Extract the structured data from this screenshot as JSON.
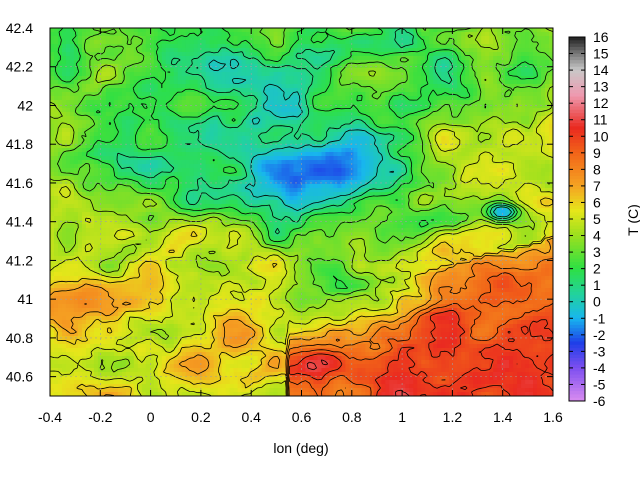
{
  "chart_data": {
    "type": "heatmap",
    "title": "",
    "xlabel": "lon (deg)",
    "ylabel": "",
    "colorbar_label": "T (C)",
    "xlim": [
      -0.4,
      1.6
    ],
    "ylim": [
      40.5,
      42.4
    ],
    "color_range": [
      -6,
      16
    ],
    "x_ticks": [
      -0.4,
      -0.2,
      0,
      0.2,
      0.4,
      0.6,
      0.8,
      1,
      1.2,
      1.4,
      1.6
    ],
    "y_ticks": [
      40.6,
      40.8,
      41,
      41.2,
      41.4,
      41.6,
      41.8,
      42,
      42.2,
      42.4
    ],
    "colorbar_ticks": [
      -6,
      -5,
      -4,
      -3,
      -2,
      -1,
      0,
      1,
      2,
      3,
      4,
      5,
      6,
      7,
      8,
      9,
      10,
      11,
      12,
      13,
      14,
      15,
      16
    ],
    "x_tick_labels": [
      "-0.4",
      "-0.2",
      "0",
      "0.2",
      "0.4",
      "0.6",
      "0.8",
      "1",
      "1.2",
      "1.4",
      "1.6"
    ],
    "y_tick_labels": [
      "40.6",
      "40.8",
      "41",
      "41.2",
      "41.4",
      "41.6",
      "41.8",
      "42",
      "42.2",
      "42.4"
    ],
    "colorbar_tick_labels": [
      "-6",
      "-5",
      "-4",
      "-3",
      "-2",
      "-1",
      "0",
      "1",
      "2",
      "3",
      "4",
      "5",
      "6",
      "7",
      "8",
      "9",
      "10",
      "11",
      "12",
      "13",
      "14",
      "15",
      "16"
    ],
    "grid": true,
    "contours": true,
    "colormap": [
      {
        "v": -6,
        "c": "#d98cf0"
      },
      {
        "v": -4,
        "c": "#7d4ff0"
      },
      {
        "v": -2.5,
        "c": "#1f3fe8"
      },
      {
        "v": -1,
        "c": "#18b6ee"
      },
      {
        "v": 0.5,
        "c": "#22d39a"
      },
      {
        "v": 2,
        "c": "#2ee044"
      },
      {
        "v": 4,
        "c": "#9be01e"
      },
      {
        "v": 5.5,
        "c": "#e6e61a"
      },
      {
        "v": 7,
        "c": "#f5a323"
      },
      {
        "v": 9,
        "c": "#f26418"
      },
      {
        "v": 10.5,
        "c": "#ea2a20"
      },
      {
        "v": 12.5,
        "c": "#ee9ab0"
      },
      {
        "v": 14,
        "c": "#c8c8c8"
      },
      {
        "v": 15,
        "c": "#787878"
      },
      {
        "v": 16,
        "c": "#1e1e1e"
      }
    ],
    "field_features": [
      {
        "lon": 0.65,
        "lat": 41.6,
        "rlon": 0.35,
        "rlat": 0.25,
        "dT": -6
      },
      {
        "lon": 0.55,
        "lat": 41.95,
        "rlon": 0.4,
        "rlat": 0.3,
        "dT": -3
      },
      {
        "lon": 0.0,
        "lat": 41.8,
        "rlon": 0.35,
        "rlat": 0.3,
        "dT": -3
      },
      {
        "lon": 0.2,
        "lat": 42.3,
        "rlon": 0.5,
        "rlat": 0.2,
        "dT": -3
      },
      {
        "lon": 1.3,
        "lat": 42.25,
        "rlon": 0.4,
        "rlat": 0.25,
        "dT": -2
      },
      {
        "lon": 1.4,
        "lat": 41.45,
        "rlon": 0.07,
        "rlat": 0.05,
        "dT": -6
      },
      {
        "lon": 1.15,
        "lat": 41.4,
        "rlon": 0.12,
        "rlat": 0.07,
        "dT": -3
      },
      {
        "lon": 0.75,
        "lat": 41.05,
        "rlon": 0.25,
        "rlat": 0.25,
        "dT": -2
      },
      {
        "lon": -0.3,
        "lat": 40.95,
        "rlon": 0.2,
        "rlat": 0.2,
        "dT": 1.5
      },
      {
        "lon": 0.35,
        "lat": 40.8,
        "rlon": 0.15,
        "rlat": 0.15,
        "dT": 1.5
      }
    ]
  }
}
